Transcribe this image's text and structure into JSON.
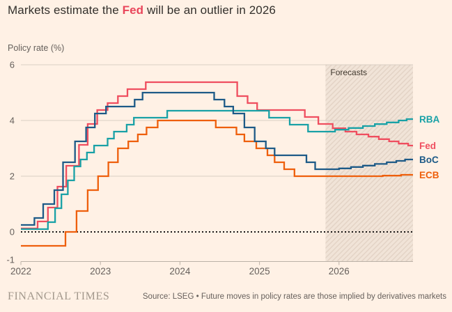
{
  "title": {
    "prefix": "Markets estimate the ",
    "highlight": "Fed",
    "suffix": " will be an outlier in 2026",
    "highlight_color": "#E9455A"
  },
  "axis_title": "Policy rate (%)",
  "footer": {
    "brand": "FINANCIAL TIMES",
    "source": "Source: LSEG • Future moves in policy rates are those implied by derivatives markets"
  },
  "colors": {
    "background": "#FFF1E5",
    "gridline": "#D9CEC3",
    "axis_line": "#BBB1A7",
    "tick_label": "#66605C",
    "zero_line": "#1A1817",
    "forecast_base": "#F1E4D8",
    "forecast_hatch": "#E2D2C4",
    "forecast_label_color": "#40382E"
  },
  "chart_data": {
    "type": "line",
    "step": true,
    "title": "Markets estimate the Fed will be an outlier in 2026",
    "ylabel": "Policy rate (%)",
    "xlim": [
      2022,
      2026.93
    ],
    "ylim": [
      -1.05,
      6
    ],
    "yticks": [
      6,
      4,
      2,
      0,
      -1
    ],
    "gridline_ticks": [
      6,
      4,
      2
    ],
    "xticks": [
      2022,
      2023,
      2024,
      2025,
      2026
    ],
    "zero_line_value": 0,
    "legend_position": "right-of-line-end",
    "forecast_band": {
      "label": "Forecasts",
      "start": 2025.83,
      "end": 2026.93
    },
    "series": [
      {
        "name": "Fed",
        "color": "#EF4E5F",
        "points": [
          [
            2022.0,
            0.125
          ],
          [
            2022.21,
            0.375
          ],
          [
            2022.34,
            0.875
          ],
          [
            2022.46,
            1.625
          ],
          [
            2022.57,
            2.375
          ],
          [
            2022.73,
            3.125
          ],
          [
            2022.84,
            3.875
          ],
          [
            2022.96,
            4.375
          ],
          [
            2023.09,
            4.625
          ],
          [
            2023.22,
            4.875
          ],
          [
            2023.34,
            5.125
          ],
          [
            2023.57,
            5.375
          ],
          [
            2024.72,
            4.875
          ],
          [
            2024.85,
            4.625
          ],
          [
            2024.97,
            4.375
          ],
          [
            2025.57,
            4.125
          ],
          [
            2025.74,
            3.875
          ],
          [
            2025.92,
            3.72
          ],
          [
            2026.08,
            3.6
          ],
          [
            2026.22,
            3.5
          ],
          [
            2026.37,
            3.42
          ],
          [
            2026.5,
            3.33
          ],
          [
            2026.63,
            3.25
          ],
          [
            2026.75,
            3.17
          ],
          [
            2026.87,
            3.1
          ]
        ]
      },
      {
        "name": "ECB",
        "color": "#EE5F0C",
        "points": [
          [
            2022.0,
            -0.5
          ],
          [
            2022.56,
            0.0
          ],
          [
            2022.7,
            0.75
          ],
          [
            2022.84,
            1.5
          ],
          [
            2022.97,
            2.0
          ],
          [
            2023.1,
            2.5
          ],
          [
            2023.22,
            3.0
          ],
          [
            2023.35,
            3.25
          ],
          [
            2023.47,
            3.5
          ],
          [
            2023.58,
            3.75
          ],
          [
            2023.72,
            4.0
          ],
          [
            2024.45,
            3.75
          ],
          [
            2024.71,
            3.5
          ],
          [
            2024.81,
            3.25
          ],
          [
            2024.96,
            3.0
          ],
          [
            2025.1,
            2.75
          ],
          [
            2025.19,
            2.5
          ],
          [
            2025.31,
            2.25
          ],
          [
            2025.44,
            2.0
          ],
          [
            2026.55,
            2.02
          ],
          [
            2026.78,
            2.05
          ]
        ]
      },
      {
        "name": "RBA",
        "color": "#18A1A6",
        "points": [
          [
            2022.0,
            0.1
          ],
          [
            2022.34,
            0.35
          ],
          [
            2022.43,
            0.85
          ],
          [
            2022.51,
            1.35
          ],
          [
            2022.59,
            1.85
          ],
          [
            2022.67,
            2.35
          ],
          [
            2022.75,
            2.6
          ],
          [
            2022.83,
            2.85
          ],
          [
            2022.92,
            3.1
          ],
          [
            2023.09,
            3.35
          ],
          [
            2023.17,
            3.6
          ],
          [
            2023.33,
            3.85
          ],
          [
            2023.42,
            4.1
          ],
          [
            2023.84,
            4.35
          ],
          [
            2025.12,
            4.1
          ],
          [
            2025.38,
            3.85
          ],
          [
            2025.61,
            3.6
          ],
          [
            2025.95,
            3.67
          ],
          [
            2026.12,
            3.73
          ],
          [
            2026.3,
            3.8
          ],
          [
            2026.45,
            3.87
          ],
          [
            2026.6,
            3.93
          ],
          [
            2026.75,
            4.0
          ],
          [
            2026.85,
            4.05
          ]
        ]
      },
      {
        "name": "BoC",
        "color": "#1D5A87",
        "points": [
          [
            2022.0,
            0.25
          ],
          [
            2022.17,
            0.5
          ],
          [
            2022.28,
            1.0
          ],
          [
            2022.42,
            1.5
          ],
          [
            2022.53,
            2.5
          ],
          [
            2022.68,
            3.25
          ],
          [
            2022.82,
            3.75
          ],
          [
            2022.93,
            4.25
          ],
          [
            2023.07,
            4.5
          ],
          [
            2023.43,
            4.75
          ],
          [
            2023.53,
            5.0
          ],
          [
            2024.43,
            4.75
          ],
          [
            2024.56,
            4.5
          ],
          [
            2024.67,
            4.25
          ],
          [
            2024.81,
            3.75
          ],
          [
            2024.94,
            3.25
          ],
          [
            2025.08,
            3.0
          ],
          [
            2025.19,
            2.75
          ],
          [
            2025.59,
            2.5
          ],
          [
            2025.7,
            2.25
          ],
          [
            2026.0,
            2.28
          ],
          [
            2026.15,
            2.33
          ],
          [
            2026.3,
            2.38
          ],
          [
            2026.45,
            2.44
          ],
          [
            2026.6,
            2.5
          ],
          [
            2026.72,
            2.55
          ],
          [
            2026.83,
            2.6
          ]
        ]
      }
    ]
  }
}
